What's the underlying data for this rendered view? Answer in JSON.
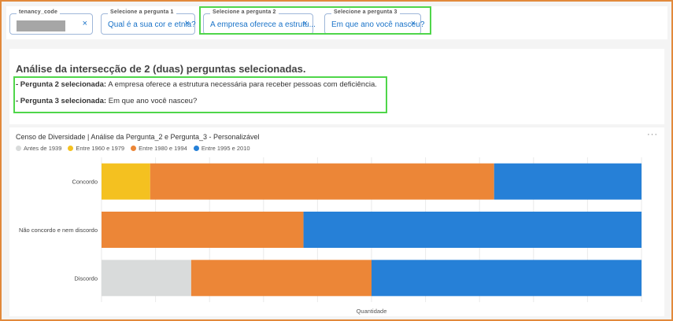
{
  "filters": [
    {
      "label": "tenancy_code",
      "value": ""
    },
    {
      "label": "Selecione a pergunta 1",
      "value": "Qual é a sua cor e etnia?"
    },
    {
      "label": "Selecione a pergunta 2",
      "value": "A empresa oferece a estrutu..."
    },
    {
      "label": "Selecione a pergunta 3",
      "value": "Em que ano você nasceu?"
    }
  ],
  "close_icon_glyph": "×",
  "analysis": {
    "title": "Análise da intersecção de 2 (duas) perguntas selecionadas.",
    "line1_label": "- Pergunta 2 selecionada:",
    "line1_text": " A empresa oferece a estrutura necessária para receber pessoas com deficiência.",
    "line2_label": "- Pergunta 3 selecionada:",
    "line2_text": " Em que ano você nasceu?"
  },
  "chart": {
    "title": "Censo de Diversidade | Análise da Pergunta_2 e Pergunta_3 - Personalizável",
    "menu_glyph": "···"
  },
  "chart_data": {
    "type": "bar",
    "orientation": "horizontal",
    "stacked": true,
    "categories": [
      "Concordo",
      "Não concordo e nem discordo",
      "Discordo"
    ],
    "series": [
      {
        "name": "Antes de 1939",
        "color": "#d9dbdb",
        "values": [
          0,
          0,
          0.166
        ]
      },
      {
        "name": "Entre 1960 e 1979",
        "color": "#f4c120",
        "values": [
          0.09,
          0,
          0
        ]
      },
      {
        "name": "Entre 1980 e 1994",
        "color": "#ec8637",
        "values": [
          0.637,
          0.374,
          0.334
        ]
      },
      {
        "name": "Entre 1995 e 2010",
        "color": "#2680d7",
        "values": [
          0.273,
          0.626,
          0.5
        ]
      }
    ],
    "xlabel": "Quantidade",
    "ylabel": "",
    "xlim": [
      0,
      1
    ],
    "grid": true,
    "legend_position": "top-left"
  }
}
